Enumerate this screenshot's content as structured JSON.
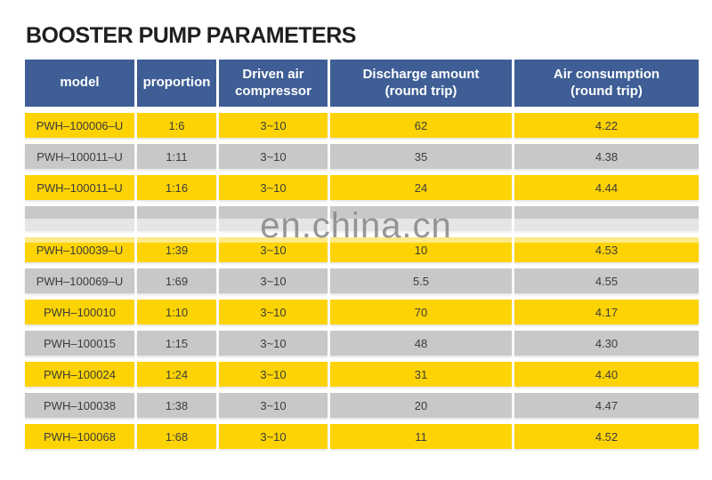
{
  "title": "BOOSTER PUMP PARAMETERS",
  "watermark": "en.china.cn",
  "colors": {
    "header_blue": "#3e5e95",
    "row_yellow": "#fdd303",
    "row_gray": "#c8c8c8",
    "title_text": "#1f1f1f",
    "cell_text": "#3c3c3c",
    "watermark_gray": "#868686"
  },
  "chart_data": {
    "type": "table",
    "title": "BOOSTER PUMP PARAMETERS",
    "columns": [
      "model",
      "proportion",
      "Driven air\ncompressor",
      "Discharge amount\n(round trip)",
      "Air consumption\n(round trip)"
    ],
    "row_colors": [
      "yellow",
      "gray",
      "yellow",
      "gray",
      "yellow",
      "gray",
      "yellow",
      "gray",
      "yellow",
      "gray",
      "yellow"
    ],
    "obscured_row_index": 3,
    "rows": [
      [
        "PWH–100006–U",
        "1:6",
        "3~10",
        "62",
        "4.22"
      ],
      [
        "PWH–100011–U",
        "1:11",
        "3~10",
        "35",
        "4.38"
      ],
      [
        "PWH–100011–U",
        "1:16",
        "3~10",
        "24",
        "4.44"
      ],
      [
        "",
        "",
        "",
        "",
        ""
      ],
      [
        "PWH–100039–U",
        "1:39",
        "3~10",
        "10",
        "4.53"
      ],
      [
        "PWH–100069–U",
        "1:69",
        "3~10",
        "5.5",
        "4.55"
      ],
      [
        "PWH–100010",
        "1:10",
        "3~10",
        "70",
        "4.17"
      ],
      [
        "PWH–100015",
        "1:15",
        "3~10",
        "48",
        "4.30"
      ],
      [
        "PWH–100024",
        "1:24",
        "3~10",
        "31",
        "4.40"
      ],
      [
        "PWH–100038",
        "1:38",
        "3~10",
        "20",
        "4.47"
      ],
      [
        "PWH–100068",
        "1:68",
        "3~10",
        "11",
        "4.52"
      ]
    ]
  }
}
